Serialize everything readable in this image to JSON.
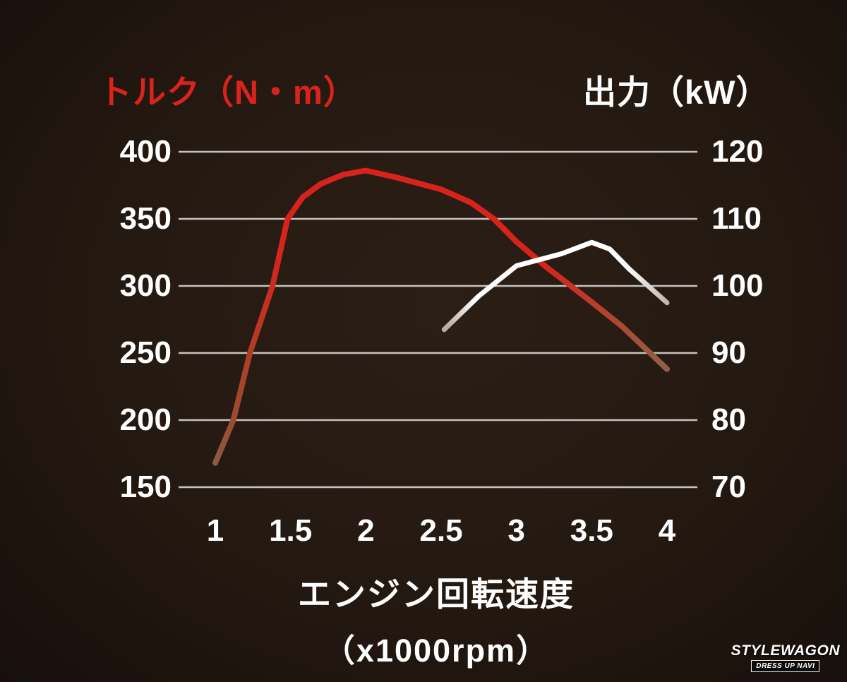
{
  "titles": {
    "left": "トルク（N・m）",
    "right": "出力（kW）"
  },
  "x_axis_title_line1": "エンジン回転速度",
  "x_axis_title_line2": "（x1000rpm）",
  "logo": {
    "line1": "STYLEWAGON",
    "line2": "DRESS UP NAVI"
  },
  "colors": {
    "background": "#241911",
    "grid": "#d8d5d2",
    "torque_line": "#d8231c",
    "power_line": "#ffffff",
    "torque_fade": "#8a5a42",
    "power_fade": "#b9aea6"
  },
  "chart_data": {
    "type": "line",
    "title": "",
    "grid": true,
    "legend": "none",
    "x_axis": {
      "label": "エンジン回転速度（x1000rpm）",
      "tick_labels": [
        "1",
        "1.5",
        "2",
        "2.5",
        "3",
        "3.5",
        "4"
      ],
      "tick_values": [
        1,
        1.5,
        2,
        2.5,
        3,
        3.5,
        4
      ],
      "unit": "x1000rpm"
    },
    "left_axis": {
      "label": "トルク（N・m）",
      "unit": "N・m",
      "ticks": [
        400,
        350,
        300,
        250,
        200,
        150
      ],
      "range": [
        150,
        400
      ]
    },
    "right_axis": {
      "label": "出力（kW）",
      "unit": "kW",
      "ticks": [
        120,
        110,
        100,
        90,
        80,
        70
      ],
      "range": [
        70,
        120
      ]
    },
    "series": [
      {
        "name": "torque-nm",
        "axis": "left",
        "color": "#d8231c",
        "stroke_width": 8,
        "points": [
          [
            1.0,
            168
          ],
          [
            1.12,
            200
          ],
          [
            1.23,
            250
          ],
          [
            1.38,
            300
          ],
          [
            1.48,
            350
          ],
          [
            1.58,
            366
          ],
          [
            1.7,
            376
          ],
          [
            1.85,
            383
          ],
          [
            2.0,
            386
          ],
          [
            2.2,
            381
          ],
          [
            2.5,
            372
          ],
          [
            2.7,
            362
          ],
          [
            2.85,
            350
          ],
          [
            3.0,
            333
          ],
          [
            3.2,
            314
          ],
          [
            3.5,
            288
          ],
          [
            3.7,
            270
          ],
          [
            3.85,
            254
          ],
          [
            4.0,
            238
          ]
        ]
      },
      {
        "name": "power-kw",
        "axis": "right",
        "color": "#ffffff",
        "stroke_width": 7,
        "points": [
          [
            2.52,
            93.5
          ],
          [
            2.75,
            98.5
          ],
          [
            3.0,
            103
          ],
          [
            3.3,
            104.8
          ],
          [
            3.5,
            106.5
          ],
          [
            3.62,
            105.5
          ],
          [
            3.75,
            102.5
          ],
          [
            4.0,
            97.5
          ]
        ]
      }
    ]
  }
}
